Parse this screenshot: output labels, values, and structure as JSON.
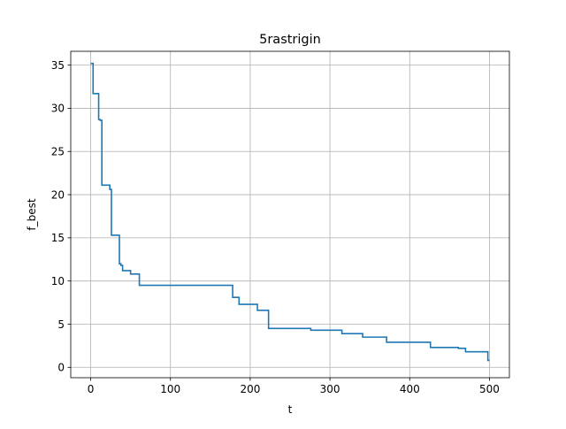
{
  "chart_data": {
    "type": "line",
    "title": "5rastrigin",
    "xlabel": "t",
    "ylabel": "f_best",
    "xlim": [
      -25,
      525
    ],
    "ylim": [
      -1.2,
      36.6
    ],
    "xticks": [
      0,
      100,
      200,
      300,
      400,
      500
    ],
    "yticks": [
      0,
      5,
      10,
      15,
      20,
      25,
      30,
      35
    ],
    "grid": true,
    "line_color": "#1f77b4",
    "series": [
      {
        "x": [
          0,
          3,
          3,
          10,
          10,
          12,
          12,
          14,
          14,
          24,
          24,
          26,
          26,
          36,
          36,
          38,
          38,
          40,
          40,
          50,
          50,
          61,
          61,
          178,
          178,
          186,
          186,
          209,
          209,
          223,
          223,
          276,
          276,
          315,
          315,
          341,
          341,
          371,
          371,
          426,
          426,
          461,
          461,
          470,
          470,
          498,
          498,
          500
        ],
        "y": [
          35.2,
          35.2,
          31.7,
          31.7,
          28.7,
          28.7,
          28.6,
          28.6,
          21.1,
          21.1,
          20.6,
          20.6,
          15.3,
          15.3,
          12.0,
          12.0,
          11.8,
          11.8,
          11.2,
          11.2,
          10.8,
          10.8,
          9.5,
          9.5,
          8.1,
          8.1,
          7.3,
          7.3,
          6.6,
          6.6,
          4.5,
          4.5,
          4.3,
          4.3,
          3.9,
          3.9,
          3.5,
          3.5,
          2.9,
          2.9,
          2.3,
          2.3,
          2.2,
          2.2,
          1.8,
          1.8,
          0.8,
          0.8
        ]
      }
    ]
  }
}
